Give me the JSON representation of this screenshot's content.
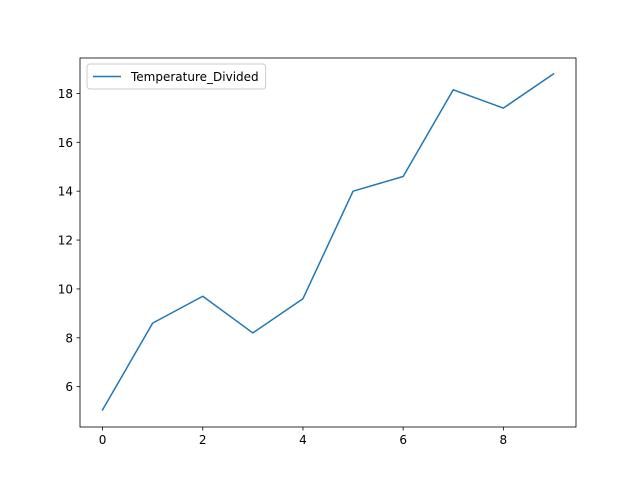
{
  "chart_data": {
    "type": "line",
    "title": "",
    "xlabel": "",
    "ylabel": "",
    "xlim": [
      -0.45,
      9.45
    ],
    "ylim": [
      4.35,
      19.45
    ],
    "xticks": [
      0,
      2,
      4,
      6,
      8
    ],
    "yticks": [
      6,
      8,
      10,
      12,
      14,
      16,
      18
    ],
    "grid": false,
    "legend": {
      "placement": "upper-left"
    },
    "series": [
      {
        "name": "Temperature_Divided",
        "color": "#1f77b4",
        "x": [
          0,
          1,
          2,
          3,
          4,
          5,
          6,
          7,
          8,
          9
        ],
        "values": [
          5.05,
          8.6,
          9.7,
          8.2,
          9.6,
          14.0,
          14.6,
          18.15,
          17.4,
          18.8
        ]
      }
    ]
  }
}
